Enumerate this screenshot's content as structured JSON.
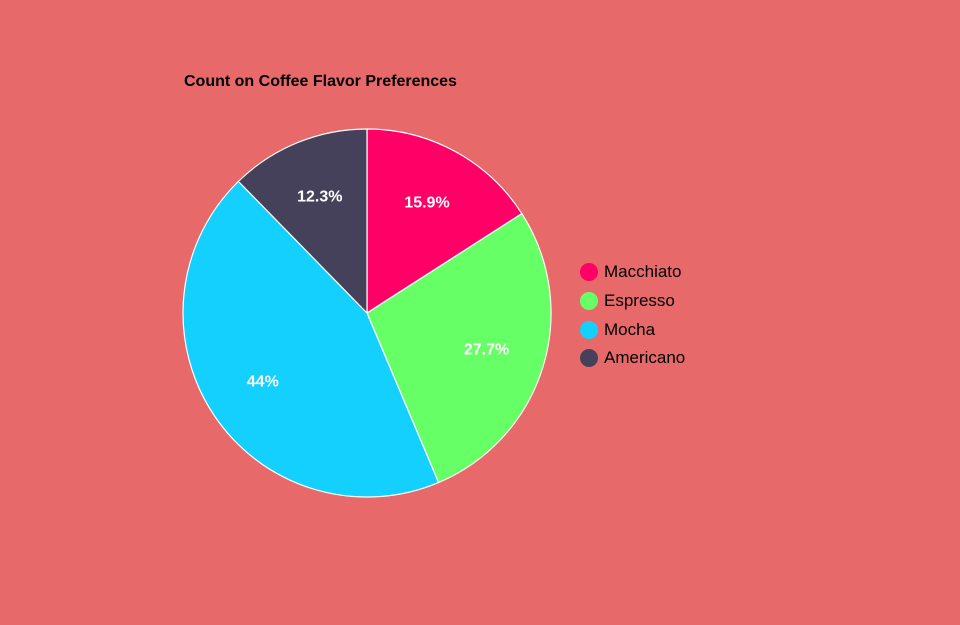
{
  "background_color": "#E8696A",
  "chart_data": {
    "type": "pie",
    "title": "Count on Coffee Flavor Preferences",
    "categories": [
      "Macchiato",
      "Espresso",
      "Mocha",
      "Americano"
    ],
    "values": [
      15.9,
      27.7,
      44,
      12.3
    ],
    "value_labels": [
      "15.9%",
      "27.7%",
      "44%",
      "12.3%"
    ],
    "colors": [
      "#FF0066",
      "#66FF66",
      "#14D0FF",
      "#46415A"
    ],
    "legend_position": "right",
    "grid": false
  }
}
